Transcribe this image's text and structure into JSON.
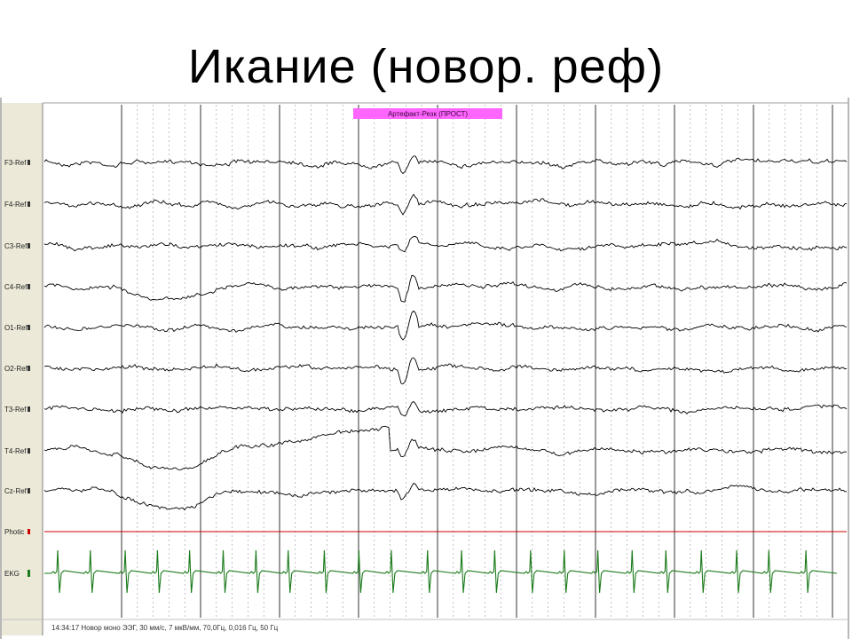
{
  "slide": {
    "title": "Икание (новор. реф)"
  },
  "viewer": {
    "event_marker_label": "Артефакт-Резк (ПРОСТ)",
    "status_line": "14:34:17 Новор моно ЭЭГ, 30 мм/с, 7 мкВ/мм, 70,0Гц, 0,016 Гц, 50 Гц",
    "channels": [
      {
        "label": "F3-Ref",
        "color": "#000000"
      },
      {
        "label": "F4-Ref",
        "color": "#000000"
      },
      {
        "label": "C3-Ref",
        "color": "#000000"
      },
      {
        "label": "C4-Ref",
        "color": "#000000"
      },
      {
        "label": "O1-Ref",
        "color": "#000000"
      },
      {
        "label": "O2-Ref",
        "color": "#000000"
      },
      {
        "label": "T3-Ref",
        "color": "#000000"
      },
      {
        "label": "T4-Ref",
        "color": "#000000"
      },
      {
        "label": "Cz-Ref",
        "color": "#000000"
      },
      {
        "label": "Photic",
        "color": "#cc0000"
      },
      {
        "label": "EKG",
        "color": "#1a7a1a"
      }
    ],
    "colors": {
      "event_marker": "#ff66ff",
      "second_grid": "#000000",
      "sub_grid": "#9a9a9a",
      "photic": "#cc0000",
      "ekg": "#1a7a1a",
      "trace": "#000000"
    }
  }
}
